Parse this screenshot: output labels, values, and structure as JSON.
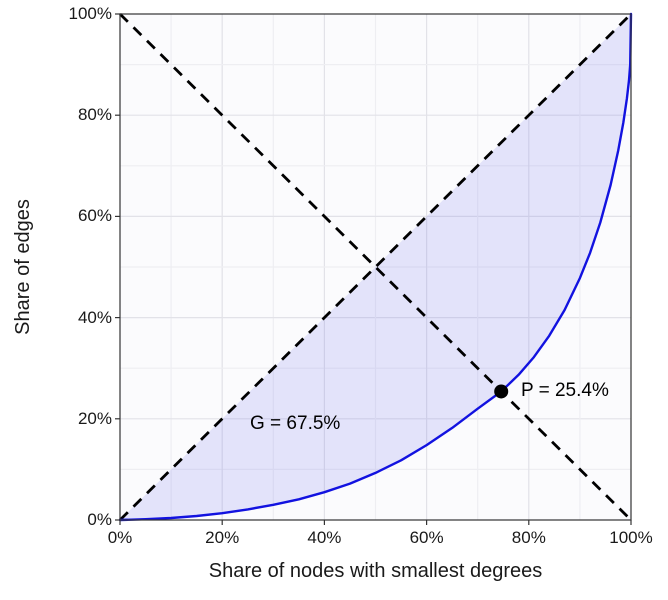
{
  "chart_data": {
    "type": "line",
    "title": "",
    "xlabel": "Share of nodes with smallest degrees",
    "ylabel": "Share of edges",
    "xlim": [
      0,
      100
    ],
    "ylim": [
      0,
      100
    ],
    "grid": true,
    "legend": "none",
    "x_ticks": [
      0,
      20,
      40,
      60,
      80,
      100
    ],
    "x_tick_labels": [
      "0%",
      "20%",
      "40%",
      "60%",
      "80%",
      "100%"
    ],
    "y_ticks": [
      0,
      20,
      40,
      60,
      80,
      100
    ],
    "y_tick_labels": [
      "0%",
      "20%",
      "40%",
      "60%",
      "80%",
      "100%"
    ],
    "series": [
      {
        "name": "lorenz-curve",
        "style": "solid",
        "color": "#1212e0",
        "x": [
          0,
          5,
          10,
          15,
          20,
          25,
          30,
          35,
          40,
          45,
          50,
          55,
          60,
          65,
          70,
          74.6,
          78,
          81,
          84,
          87,
          90,
          92,
          94,
          96,
          97.5,
          98.5,
          99.2,
          99.6,
          99.85,
          100
        ],
        "y": [
          0,
          0.15,
          0.4,
          0.8,
          1.35,
          2.1,
          3.0,
          4.1,
          5.5,
          7.2,
          9.3,
          11.8,
          14.8,
          18.2,
          22.0,
          25.4,
          28.7,
          32.2,
          36.4,
          41.5,
          47.8,
          52.8,
          58.8,
          66.2,
          73.0,
          78.5,
          83.3,
          86.9,
          90.0,
          100
        ]
      },
      {
        "name": "equality-diagonal",
        "style": "dashed",
        "color": "#000000",
        "x": [
          0,
          100
        ],
        "y": [
          0,
          100
        ]
      },
      {
        "name": "anti-diagonal",
        "style": "dashed",
        "color": "#000000",
        "x": [
          0,
          100
        ],
        "y": [
          100,
          0
        ]
      }
    ],
    "fill_between": {
      "upper": "equality-diagonal",
      "lower": "lorenz-curve",
      "color": "rgba(105,105,235,0.16)"
    },
    "point": {
      "x": 74.6,
      "y": 25.4,
      "color": "#000000",
      "radius": 7
    },
    "annotations": [
      {
        "id": "gini",
        "text": "G = 67.5%",
        "x": 26,
        "y": 18
      },
      {
        "id": "p",
        "text": "P = 25.4%",
        "x": 79,
        "y": 25.4
      }
    ],
    "gini_percent": 67.5,
    "p_percent": 25.4,
    "colors": {
      "curve": "#1212e0",
      "dashed_lines": "#000000",
      "fill": "rgba(105,105,235,0.16)",
      "grid_major": "#e2e2e8",
      "grid_minor": "#eeeef2",
      "axis_box": "#333333",
      "text": "#1a1a1a"
    }
  }
}
